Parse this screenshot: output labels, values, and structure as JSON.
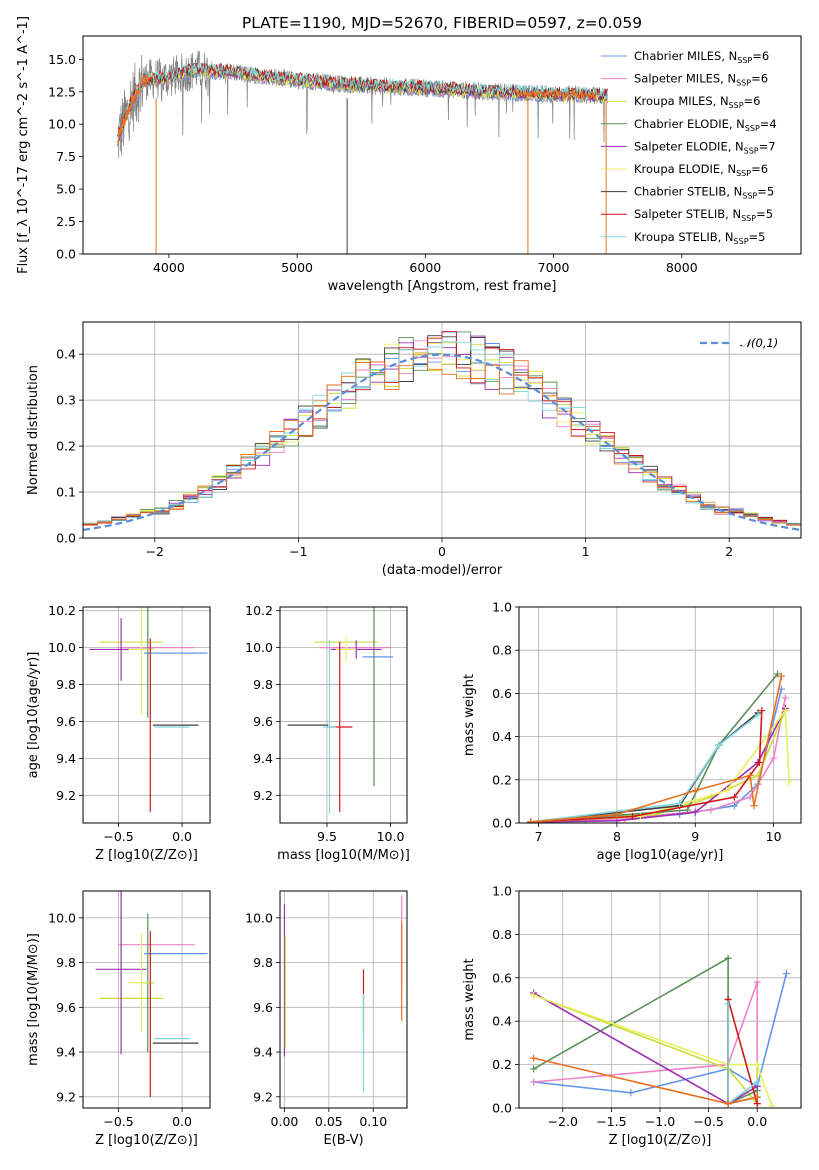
{
  "colors": [
    "#6495ed",
    "#ee82c8",
    "#cddc39",
    "#5a8f5a",
    "#9b30b0",
    "#e8f060",
    "#404040",
    "#d01818",
    "#80d8e0"
  ],
  "highlight_colors": {
    "orange": "#e87020",
    "gray": "#808080"
  },
  "chart_data": [
    {
      "id": "spectrum",
      "type": "line",
      "title": "PLATE=1190, MJD=52670, FIBERID=0597, z=0.059",
      "xlabel": "wavelength [Angstrom, rest frame]",
      "ylabel": "Flux [f_λ 10^-17 erg cm^-2 s^-1 A^-1]",
      "xlim": [
        3330,
        8930
      ],
      "ylim": [
        0,
        16.8
      ],
      "xticks": [
        4000,
        5000,
        6000,
        7000,
        8000
      ],
      "yticks": [
        0.0,
        2.5,
        5.0,
        7.5,
        10.0,
        12.5,
        15.0
      ],
      "grid": false,
      "legend_position": "upper right",
      "data_range": [
        3600,
        7420
      ],
      "legend": [
        "Chabrier MILES, N_SSP=6",
        "Salpeter MILES, N_SSP=6",
        "Kroupa MILES, N_SSP=6",
        "Chabrier ELODIE, N_SSP=4",
        "Salpeter ELODIE, N_SSP=7",
        "Kroupa ELODIE, N_SSP=6",
        "Chabrier STELIB, N_SSP=5",
        "Salpeter STELIB, N_SSP=5",
        "Kroupa STELIB, N_SSP=5"
      ],
      "continuum": {
        "x": [
          3600,
          3700,
          3800,
          4000,
          4200,
          4500,
          5000,
          5500,
          6000,
          6500,
          7000,
          7400
        ],
        "y": [
          8.8,
          11.5,
          13.4,
          13.6,
          14.2,
          14.0,
          13.4,
          13.0,
          12.8,
          12.5,
          12.3,
          12.2
        ]
      }
    },
    {
      "id": "residuals",
      "type": "histogram",
      "xlabel": "(data-model)/error",
      "ylabel": "Normed distribution",
      "xlim": [
        -2.5,
        2.5
      ],
      "ylim": [
        0,
        0.47
      ],
      "xticks": [
        -2,
        -1,
        0,
        1,
        2
      ],
      "yticks": [
        0.0,
        0.1,
        0.2,
        0.3,
        0.4
      ],
      "grid": true,
      "legend": [
        "𝒩(0,1)"
      ],
      "legend_position": "upper right",
      "bin_width": 0.1
    },
    {
      "id": "age_vs_Z",
      "type": "errorbar",
      "xlabel": "Z [log10(Z/Z⊙)]",
      "ylabel": "age  [log10(age/yr)]",
      "xlim": [
        -0.78,
        0.22
      ],
      "ylim": [
        9.05,
        10.22
      ],
      "xticks": [
        -0.5,
        0.0
      ],
      "yticks": [
        9.2,
        9.4,
        9.6,
        9.8,
        10.0,
        10.2
      ],
      "grid": true,
      "points": [
        {
          "c": 0,
          "x": -0.05,
          "y": 9.97,
          "xe": 0.25,
          "ye": 0.0
        },
        {
          "c": 1,
          "x": -0.2,
          "y": 10.0,
          "xe": 0.3,
          "ye": 0.0
        },
        {
          "c": 2,
          "x": -0.4,
          "y": 10.03,
          "xe": 0.25,
          "ye": 0.0
        },
        {
          "c": 3,
          "x": -0.27,
          "y": 9.99,
          "xe": 0.05,
          "ye": 0.37
        },
        {
          "c": 4,
          "x": -0.48,
          "y": 9.99,
          "xe": 0.25,
          "ye": 0.17
        },
        {
          "c": 5,
          "x": -0.32,
          "y": 9.99,
          "xe": 0.1,
          "ye": 0.35
        },
        {
          "c": 6,
          "x": -0.05,
          "y": 9.58,
          "xe": 0.18,
          "ye": 0.0
        },
        {
          "c": 7,
          "x": -0.25,
          "y": 9.58,
          "xe": 0.0,
          "ye": 0.47
        },
        {
          "c": 8,
          "x": -0.08,
          "y": 9.57,
          "xe": 0.14,
          "ye": 0.0
        }
      ]
    },
    {
      "id": "age_vs_mass",
      "type": "errorbar",
      "xlabel": "mass [log10(M/M⊙)]",
      "ylabel": "",
      "xlim": [
        9.13,
        10.13
      ],
      "ylim": [
        9.05,
        10.22
      ],
      "xticks": [
        9.5,
        10.0
      ],
      "yticks": [
        9.2,
        9.4,
        9.6,
        9.8,
        10.0,
        10.2
      ],
      "grid": true,
      "points": [
        {
          "c": 0,
          "x": 9.9,
          "y": 9.95,
          "xe": 0.12,
          "ye": 0.0
        },
        {
          "c": 1,
          "x": 9.72,
          "y": 10.0,
          "xe": 0.28,
          "ye": 0.0
        },
        {
          "c": 2,
          "x": 9.65,
          "y": 10.03,
          "xe": 0.25,
          "ye": 0.0
        },
        {
          "c": 3,
          "x": 9.87,
          "y": 9.99,
          "xe": 0.0,
          "ye": 0.74
        },
        {
          "c": 4,
          "x": 9.73,
          "y": 9.99,
          "xe": 0.2,
          "ye": 0.05
        },
        {
          "c": 5,
          "x": 9.65,
          "y": 9.99,
          "xe": 0.08,
          "ye": 0.07
        },
        {
          "c": 6,
          "x": 9.35,
          "y": 9.58,
          "xe": 0.16,
          "ye": 0.0
        },
        {
          "c": 7,
          "x": 9.6,
          "y": 9.57,
          "xe": 0.1,
          "ye": 0.46
        },
        {
          "c": 8,
          "x": 9.52,
          "y": 9.57,
          "xe": 0.05,
          "ye": 0.47
        }
      ]
    },
    {
      "id": "massweight_vs_age",
      "type": "line",
      "xlabel": "age  [log10(age/yr)]",
      "ylabel": "mass weight",
      "xlim": [
        6.75,
        10.35
      ],
      "ylim": [
        0,
        1.0
      ],
      "xticks": [
        7,
        8,
        9,
        10
      ],
      "yticks": [
        0.0,
        0.2,
        0.4,
        0.6,
        0.8,
        1.0
      ],
      "grid": true,
      "series": [
        {
          "c": 0,
          "x": [
            6.9,
            7.6,
            8.8,
            9.5,
            9.8,
            10.1
          ],
          "y": [
            0.005,
            0.015,
            0.04,
            0.08,
            0.18,
            0.62
          ]
        },
        {
          "c": 1,
          "x": [
            6.9,
            8.1,
            9.2,
            9.7,
            10.0,
            10.15
          ],
          "y": [
            0.005,
            0.02,
            0.06,
            0.12,
            0.3,
            0.58
          ]
        },
        {
          "c": 2,
          "x": [
            6.9,
            8.5,
            9.2,
            9.8,
            10.15
          ],
          "y": [
            0.005,
            0.04,
            0.12,
            0.22,
            0.52
          ]
        },
        {
          "c": 3,
          "x": [
            6.9,
            8.9,
            9.3,
            10.05
          ],
          "y": [
            0.005,
            0.06,
            0.36,
            0.69
          ]
        },
        {
          "c": 4,
          "x": [
            6.9,
            8.0,
            9.0,
            9.8,
            10.15
          ],
          "y": [
            0.005,
            0.01,
            0.05,
            0.28,
            0.53
          ]
        },
        {
          "c": 5,
          "x": [
            6.9,
            8.3,
            9.4,
            10.15,
            10.2
          ],
          "y": [
            0.005,
            0.03,
            0.15,
            0.52,
            0.19
          ]
        },
        {
          "c": 6,
          "x": [
            6.9,
            8.8,
            9.3,
            9.8
          ],
          "y": [
            0.005,
            0.08,
            0.36,
            0.51
          ]
        },
        {
          "c": 7,
          "x": [
            6.9,
            8.2,
            9.5,
            9.82,
            9.85
          ],
          "y": [
            0.005,
            0.03,
            0.12,
            0.28,
            0.52
          ]
        },
        {
          "c": 8,
          "x": [
            6.9,
            8.8,
            9.3,
            9.8
          ],
          "y": [
            0.005,
            0.09,
            0.36,
            0.5
          ]
        },
        {
          "c": "orange",
          "x": [
            6.9,
            8.0,
            9.0,
            9.7,
            9.75,
            10.1
          ],
          "y": [
            0.005,
            0.04,
            0.15,
            0.22,
            0.08,
            0.68
          ]
        }
      ]
    },
    {
      "id": "mass_vs_Z",
      "type": "errorbar",
      "xlabel": "Z [log10(Z/Z⊙)]",
      "ylabel": "mass [log10(M/M⊙)]",
      "xlim": [
        -0.78,
        0.22
      ],
      "ylim": [
        9.15,
        10.12
      ],
      "xticks": [
        -0.5,
        0.0
      ],
      "yticks": [
        9.2,
        9.4,
        9.6,
        9.8,
        10.0
      ],
      "grid": true,
      "points": [
        {
          "c": 0,
          "x": -0.05,
          "y": 9.84,
          "xe": 0.25,
          "ye": 0.0
        },
        {
          "c": 1,
          "x": -0.2,
          "y": 9.88,
          "xe": 0.3,
          "ye": 0.0
        },
        {
          "c": 2,
          "x": -0.4,
          "y": 9.64,
          "xe": 0.25,
          "ye": 0.0
        },
        {
          "c": 3,
          "x": -0.27,
          "y": 9.71,
          "xe": 0.05,
          "ye": 0.31
        },
        {
          "c": 4,
          "x": -0.48,
          "y": 9.77,
          "xe": 0.2,
          "ye": 0.38
        },
        {
          "c": 5,
          "x": -0.32,
          "y": 9.71,
          "xe": 0.1,
          "ye": 0.22
        },
        {
          "c": 6,
          "x": -0.05,
          "y": 9.44,
          "xe": 0.18,
          "ye": 0.0
        },
        {
          "c": 7,
          "x": -0.25,
          "y": 9.57,
          "xe": 0.0,
          "ye": 0.37
        },
        {
          "c": 8,
          "x": -0.08,
          "y": 9.46,
          "xe": 0.14,
          "ye": 0.0
        }
      ]
    },
    {
      "id": "mass_vs_EBV",
      "type": "errorbar",
      "xlabel": "E(B-V)",
      "ylabel": "",
      "xlim": [
        -0.005,
        0.138
      ],
      "ylim": [
        9.15,
        10.12
      ],
      "xticks": [
        0.0,
        0.05,
        0.1
      ],
      "yticks": [
        9.2,
        9.4,
        9.6,
        9.8,
        10.0
      ],
      "grid": true,
      "points": [
        {
          "c": 4,
          "x": 0.0,
          "y": 9.72,
          "xe": 0.0,
          "ye": 0.34
        },
        {
          "c": 2,
          "x": 0.001,
          "y": 9.67,
          "xe": 0.0,
          "ye": 0.25
        },
        {
          "c": 7,
          "x": 0.089,
          "y": 9.62,
          "xe": 0.0,
          "ye": 0.15
        },
        {
          "c": 8,
          "x": 0.089,
          "y": 9.44,
          "xe": 0.0,
          "ye": 0.22
        },
        {
          "c": 1,
          "x": 0.132,
          "y": 9.9,
          "xe": 0.0,
          "ye": 0.2
        },
        {
          "c": "orange",
          "x": 0.132,
          "y": 9.76,
          "xe": 0.0,
          "ye": 0.22
        }
      ]
    },
    {
      "id": "massweight_vs_Z",
      "type": "line",
      "xlabel": "Z [log10(Z/Z⊙)]",
      "ylabel": "mass weight",
      "xlim": [
        -2.45,
        0.45
      ],
      "ylim": [
        0,
        1.0
      ],
      "xticks": [
        -2.0,
        -1.5,
        -1.0,
        -0.5,
        0.0
      ],
      "yticks": [
        0.0,
        0.2,
        0.4,
        0.6,
        0.8,
        1.0
      ],
      "grid": true,
      "series": [
        {
          "c": 0,
          "x": [
            -2.3,
            -1.3,
            -0.3,
            0.0,
            0.3
          ],
          "y": [
            0.12,
            0.07,
            0.18,
            0.1,
            0.62
          ]
        },
        {
          "c": 1,
          "x": [
            -2.3,
            -0.3,
            0.0,
            0.0
          ],
          "y": [
            0.12,
            0.2,
            0.58,
            0.02
          ]
        },
        {
          "c": 2,
          "x": [
            -2.3,
            -0.3,
            0.0,
            0.0
          ],
          "y": [
            0.52,
            0.18,
            0.02,
            0.2
          ]
        },
        {
          "c": 3,
          "x": [
            -2.3,
            -0.3,
            -0.3,
            0.0
          ],
          "y": [
            0.18,
            0.69,
            0.02,
            0.08
          ]
        },
        {
          "c": 4,
          "x": [
            -2.3,
            -0.3,
            0.0
          ],
          "y": [
            0.53,
            0.02,
            0.1
          ]
        },
        {
          "c": 5,
          "x": [
            -2.3,
            -0.3,
            0.0,
            0.15
          ],
          "y": [
            0.52,
            0.2,
            0.2,
            0.01
          ]
        },
        {
          "c": 6,
          "x": [
            -0.3,
            -0.3,
            0.0
          ],
          "y": [
            0.5,
            0.02,
            0.05
          ]
        },
        {
          "c": 7,
          "x": [
            -0.3,
            -0.3,
            0.0
          ],
          "y": [
            0.02,
            0.5,
            0.02
          ]
        },
        {
          "c": 8,
          "x": [
            -0.3,
            -0.3,
            0.0
          ],
          "y": [
            0.48,
            0.02,
            0.12
          ]
        },
        {
          "c": "orange",
          "x": [
            -2.3,
            -0.3,
            0.0
          ],
          "y": [
            0.23,
            0.02,
            0.05
          ]
        }
      ]
    }
  ]
}
